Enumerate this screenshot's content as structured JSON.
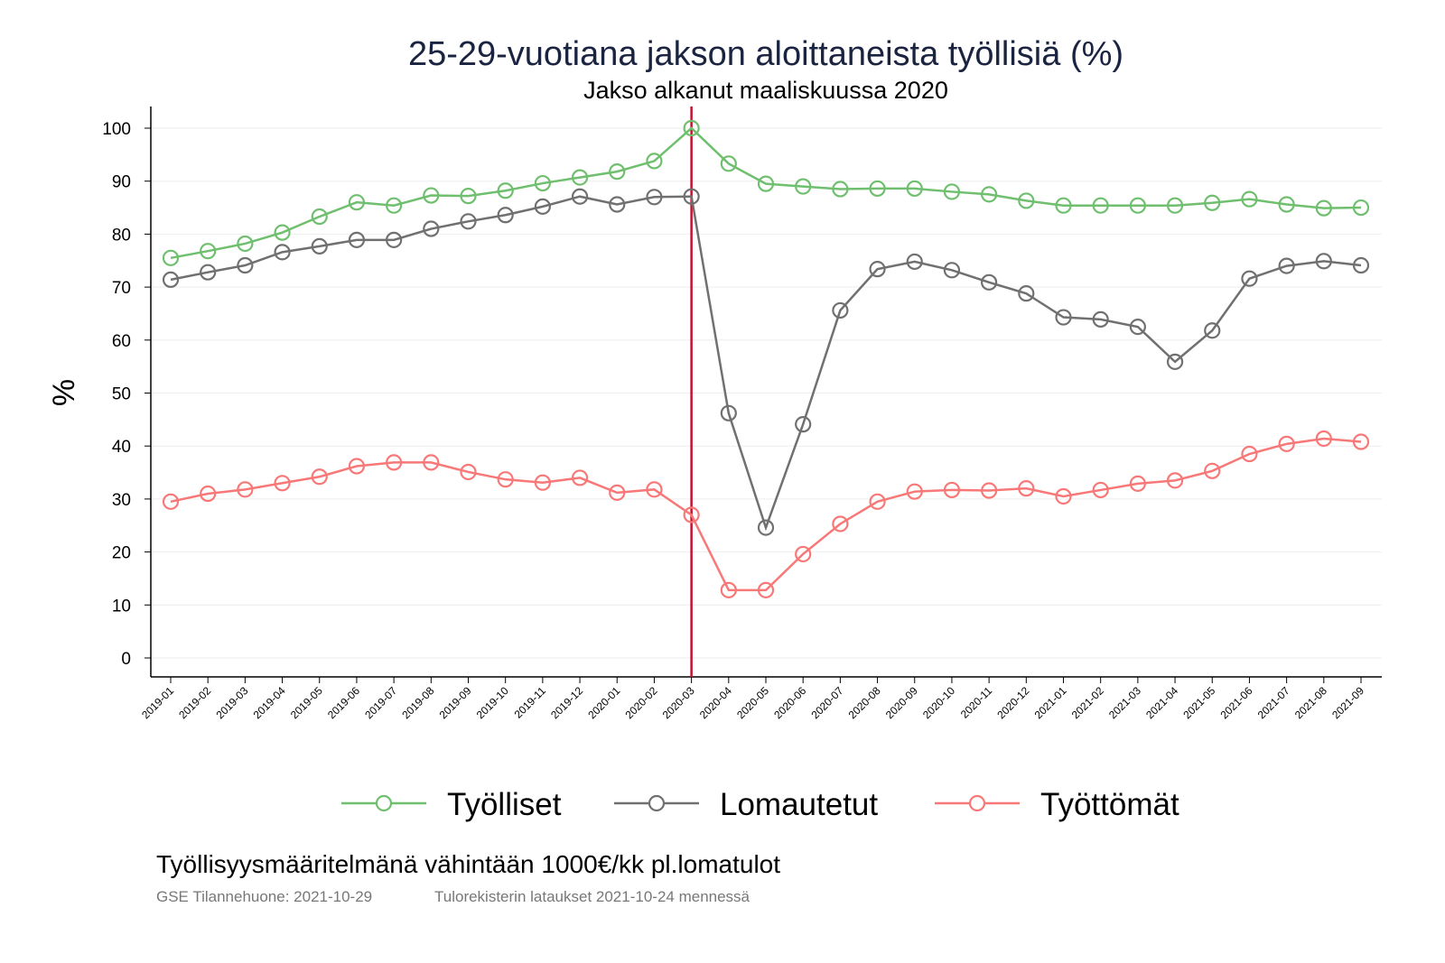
{
  "chart_data": {
    "type": "line",
    "title": "25-29-vuotiana jakson aloittaneista työllisiä (%)",
    "subtitle": "Jakso alkanut maaliskuussa 2020",
    "ylabel": "%",
    "xlabel": "",
    "ylim": [
      0,
      100
    ],
    "yticks": [
      0,
      10,
      20,
      30,
      40,
      50,
      60,
      70,
      80,
      90,
      100
    ],
    "grid": true,
    "legend_position": "bottom",
    "vline": {
      "x": "2020-03",
      "color": "#c8102e"
    },
    "x": [
      "2019-01",
      "2019-02",
      "2019-03",
      "2019-04",
      "2019-05",
      "2019-06",
      "2019-07",
      "2019-08",
      "2019-09",
      "2019-10",
      "2019-11",
      "2019-12",
      "2020-01",
      "2020-02",
      "2020-03",
      "2020-04",
      "2020-05",
      "2020-06",
      "2020-07",
      "2020-08",
      "2020-09",
      "2020-10",
      "2020-11",
      "2020-12",
      "2021-01",
      "2021-02",
      "2021-03",
      "2021-04",
      "2021-05",
      "2021-06",
      "2021-07",
      "2021-08",
      "2021-09"
    ],
    "series": [
      {
        "name": "Työlliset",
        "color": "#6fbf6f",
        "values": [
          75.5,
          76.8,
          78.2,
          80.3,
          83.3,
          86.0,
          85.4,
          87.3,
          87.2,
          88.2,
          89.6,
          90.7,
          91.8,
          93.8,
          100,
          93.3,
          89.5,
          89.0,
          88.5,
          88.6,
          88.6,
          88.0,
          87.5,
          86.3,
          85.4,
          85.4,
          85.4,
          85.4,
          85.9,
          86.6,
          85.6,
          84.9,
          85.0
        ]
      },
      {
        "name": "Lomautetut",
        "color": "#707070",
        "values": [
          71.4,
          72.8,
          74.1,
          76.6,
          77.7,
          78.9,
          78.9,
          81.0,
          82.4,
          83.6,
          85.2,
          87.1,
          85.6,
          87.0,
          87.1,
          46.2,
          24.6,
          44.1,
          65.6,
          73.4,
          74.8,
          73.2,
          70.9,
          68.8,
          64.3,
          63.9,
          62.5,
          55.9,
          61.8,
          71.6,
          74.0,
          74.9,
          74.1
        ]
      },
      {
        "name": "Työttömät",
        "color": "#f87878",
        "values": [
          29.5,
          31.0,
          31.8,
          33.0,
          34.2,
          36.2,
          36.9,
          36.9,
          35.1,
          33.7,
          33.1,
          34.0,
          31.2,
          31.8,
          27.0,
          12.8,
          12.8,
          19.6,
          25.3,
          29.5,
          31.4,
          31.7,
          31.6,
          32.0,
          30.5,
          31.7,
          32.9,
          33.5,
          35.3,
          38.5,
          40.4,
          41.4,
          40.8
        ]
      }
    ]
  },
  "footer": {
    "note": "Työllisyysmääritelmänä vähintään 1000€/kk pl.lomatulot",
    "source": "GSE Tilannehuone: 2021-10-29",
    "data_note": "Tulorekisterin lataukset 2021-10-24 mennessä"
  }
}
